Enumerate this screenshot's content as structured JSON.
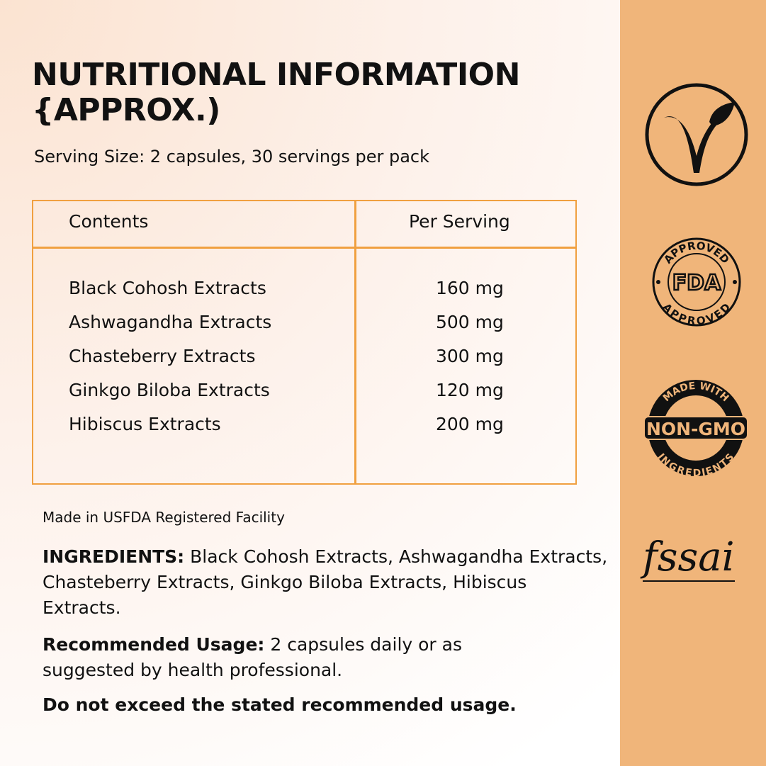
{
  "header": {
    "title_line1": "NUTRITIONAL INFORMATION",
    "title_line2": "{APPROX.)",
    "serving": "Serving Size: 2 capsules, 30 servings per pack"
  },
  "table": {
    "headers": [
      "Contents",
      "Per Serving"
    ],
    "rows": [
      {
        "name": "Black Cohosh Extracts",
        "value": "160 mg"
      },
      {
        "name": "Ashwagandha Extracts",
        "value": "500 mg"
      },
      {
        "name": "Chasteberry Extracts",
        "value": "300 mg"
      },
      {
        "name": "Ginkgo Biloba Extracts",
        "value": "120 mg"
      },
      {
        "name": "Hibiscus Extracts",
        "value": "200 mg"
      }
    ]
  },
  "facility": "Made in USFDA Registered Facility",
  "ingredients": {
    "label": "INGREDIENTS:",
    "text": " Black Cohosh Extracts, Ashwagandha Extracts, Chasteberry Extracts, Ginkgo Biloba Extracts, Hibiscus Extracts."
  },
  "usage": {
    "label": "Recommended Usage:",
    "text": " 2 capsules daily or as suggested by health professional."
  },
  "warning": "Do not exceed the stated recommended usage.",
  "badges": {
    "fda_top": "APPROVED",
    "fda_mid": "FDA",
    "fda_bottom": "APPROVED",
    "gmo_top": "MADE WITH",
    "gmo_mid": "NON-GMO",
    "gmo_bottom": "INGREDIENTS",
    "fssai": "fssai"
  },
  "colors": {
    "accent": "#f0a040",
    "panel": "#f0b57a"
  }
}
